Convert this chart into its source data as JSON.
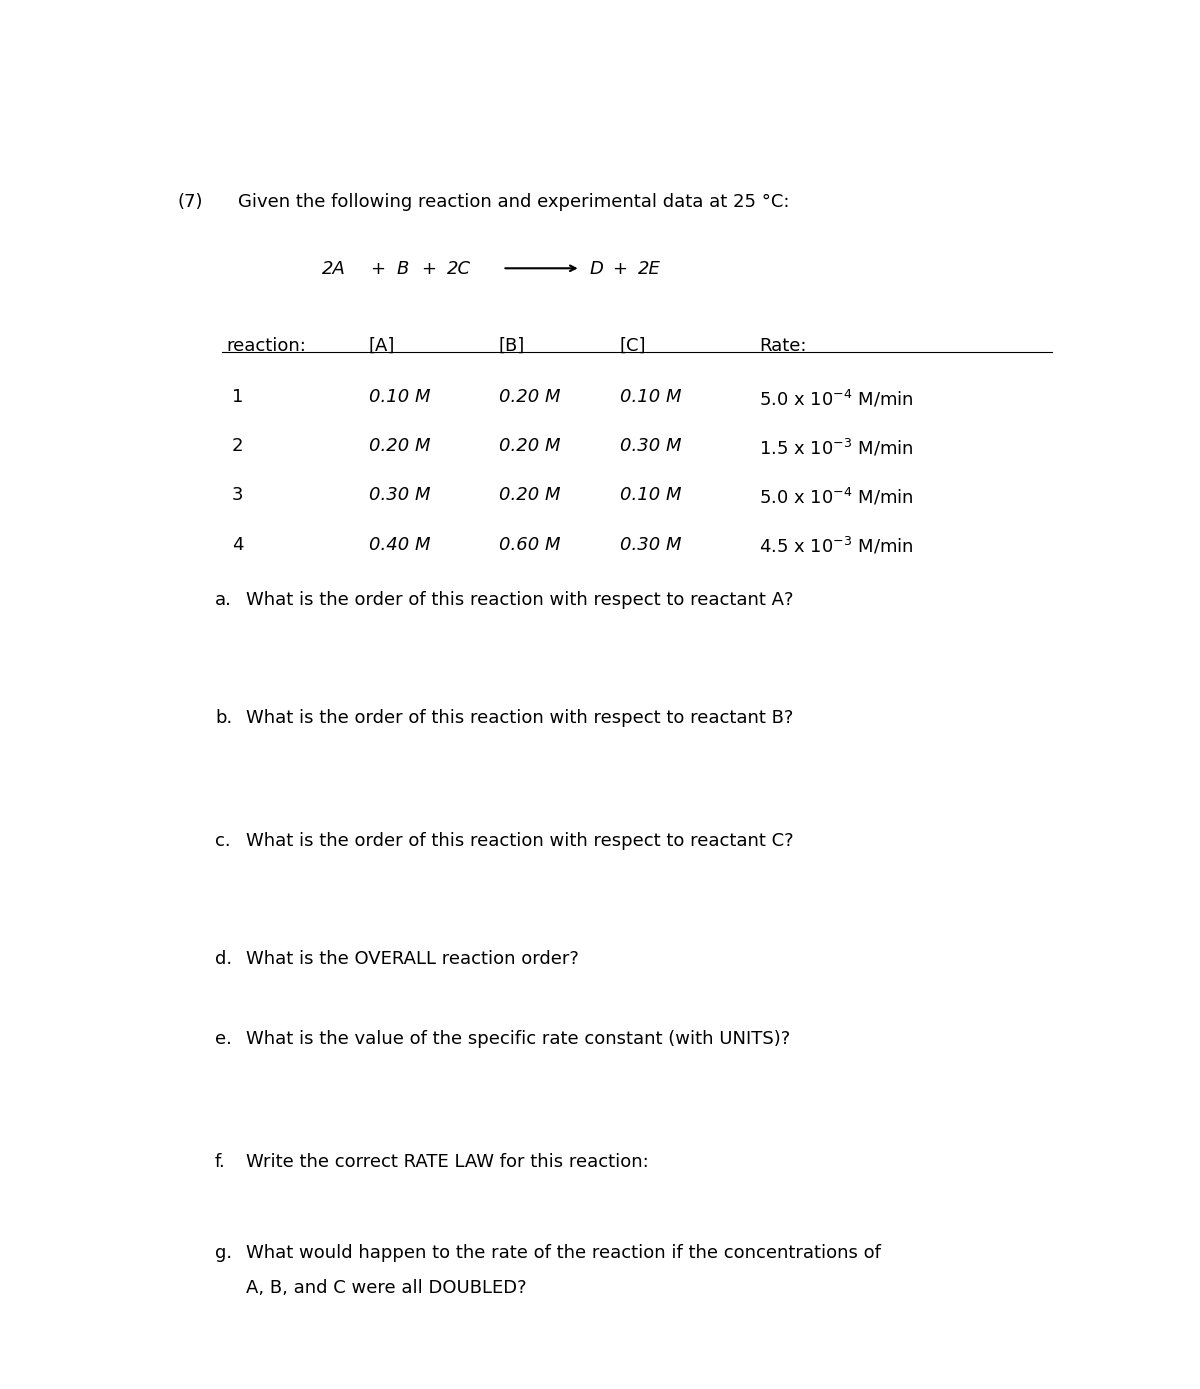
{
  "problem_number": "(7)",
  "intro_text": "Given the following reaction and experimental data at 25 °C:",
  "bg_color": "#ffffff",
  "text_color": "#000000",
  "font_size": 13,
  "figwidth": 12.0,
  "figheight": 13.89,
  "questions": [
    {
      "label": "a.",
      "text": "What is the order of this reaction with respect to reactant A?",
      "multiline": false
    },
    {
      "label": "b.",
      "text": "What is the order of this reaction with respect to reactant B?",
      "multiline": false
    },
    {
      "label": "c.",
      "text": "What is the order of this reaction with respect to reactant C?",
      "multiline": false
    },
    {
      "label": "d.",
      "text": "What is the OVERALL reaction order?",
      "multiline": false
    },
    {
      "label": "e.",
      "text": "What is the value of the specific rate constant (with UNITS)?",
      "multiline": false
    },
    {
      "label": "f.",
      "text": "Write the correct RATE LAW for this reaction:",
      "multiline": false
    },
    {
      "label": "g.",
      "text1": "What would happen to the rate of the reaction if the concentrations of",
      "text2": "A, B, and C were all DOUBLED?",
      "multiline": true
    }
  ]
}
